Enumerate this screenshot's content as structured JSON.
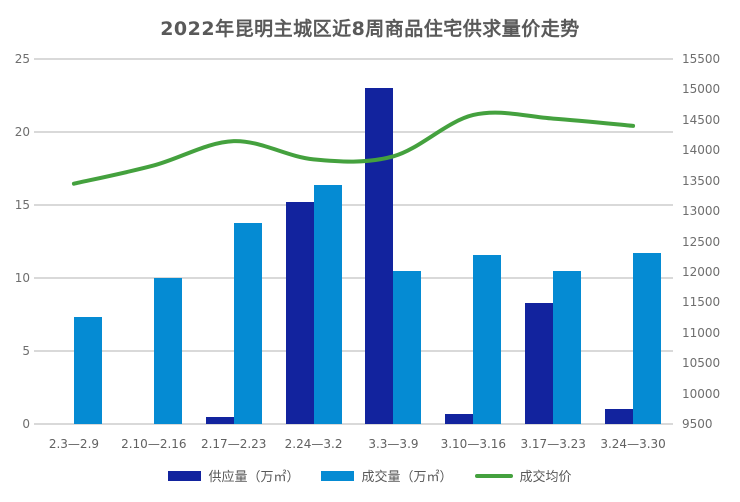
{
  "title": "2022年昆明主城区近8周商品住宅供求量价走势",
  "colors": {
    "background": "#ffffff",
    "title_text": "#595959",
    "axis_text": "#6e6e6e",
    "legend_text": "#595959",
    "gridline": "#d9d9d9",
    "supply_bar": "#12239e",
    "transaction_bar": "#058bd3",
    "price_line": "#44a13e"
  },
  "chart_data": {
    "type": "combo-bar-line",
    "title": "2022年昆明主城区近8周商品住宅供求量价走势",
    "categories": [
      "2.3—2.9",
      "2.10—2.16",
      "2.17—2.23",
      "2.24—3.2",
      "3.3—3.9",
      "3.10—3.16",
      "3.17—3.23",
      "3.24—3.30"
    ],
    "series": [
      {
        "name": "供应量（万㎡）",
        "type": "bar",
        "axis": "left",
        "color": "#12239e",
        "values": [
          0,
          0,
          0.5,
          15.2,
          23.0,
          0.7,
          8.3,
          1.0
        ]
      },
      {
        "name": "成交量（万㎡）",
        "type": "bar",
        "axis": "left",
        "color": "#058bd3",
        "values": [
          7.3,
          10.0,
          13.8,
          16.4,
          10.5,
          11.6,
          10.5,
          11.7
        ]
      },
      {
        "name": "成交均价",
        "type": "line",
        "axis": "right",
        "color": "#44a13e",
        "values": [
          13450,
          13750,
          14150,
          13850,
          13900,
          14580,
          14520,
          14400
        ]
      }
    ],
    "left_axis": {
      "min": 0,
      "max": 25,
      "ticks": [
        "0",
        "5",
        "10",
        "15",
        "20",
        "25"
      ]
    },
    "right_axis": {
      "min": 9500,
      "max": 15500,
      "ticks": [
        "9500",
        "10000",
        "10500",
        "11000",
        "11500",
        "12000",
        "12500",
        "13000",
        "13500",
        "14000",
        "14500",
        "15000",
        "15500"
      ]
    },
    "grid": "horizontal",
    "legend_position": "bottom",
    "line_smooth": true
  }
}
